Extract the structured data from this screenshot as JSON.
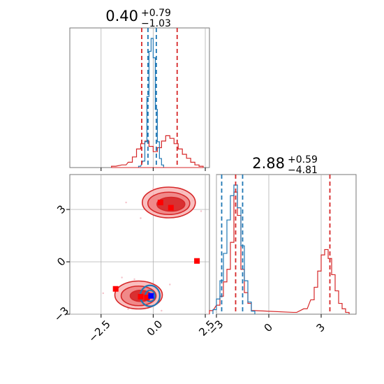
{
  "chart_data": {
    "type": "corner",
    "params": [
      "p0",
      "p1"
    ],
    "titles": [
      {
        "value": "0.40",
        "plus": "+0.79",
        "minus": "−1.03"
      },
      {
        "value": "2.88",
        "plus": "+0.59",
        "minus": "−4.81"
      }
    ],
    "ranges": {
      "x": [
        -4.0,
        2.7
      ],
      "y": [
        -3.0,
        5.0
      ]
    },
    "xticks": [
      {
        "v": -2.5,
        "label": "−2.5"
      },
      {
        "v": 0.0,
        "label": "0.0"
      },
      {
        "v": 2.5,
        "label": "2.5"
      }
    ],
    "yticks": [
      {
        "v": -3,
        "label": "−3"
      },
      {
        "v": 0,
        "label": "0"
      },
      {
        "v": 3,
        "label": "3"
      }
    ],
    "colors": {
      "red": "#d62728",
      "blue": "#1f77b4",
      "red_fill": "#f08080",
      "marker_red": "#ff0000",
      "marker_blue": "#0000ff",
      "grid": "#b0b0b0"
    },
    "hist_x": {
      "red_lines": [
        -0.55,
        1.15
      ],
      "blue_lines": [
        -0.25,
        0.15
      ],
      "red_bins": [
        [
          -2.0,
          0.01
        ],
        [
          -1.5,
          0.02
        ],
        [
          -1.2,
          0.04
        ],
        [
          -1.0,
          0.08
        ],
        [
          -0.8,
          0.14
        ],
        [
          -0.6,
          0.18
        ],
        [
          -0.4,
          0.2
        ],
        [
          -0.2,
          0.16
        ],
        [
          0.0,
          0.12
        ],
        [
          0.2,
          0.15
        ],
        [
          0.4,
          0.2
        ],
        [
          0.6,
          0.24
        ],
        [
          0.8,
          0.22
        ],
        [
          1.0,
          0.18
        ],
        [
          1.2,
          0.14
        ],
        [
          1.4,
          0.1
        ],
        [
          1.6,
          0.07
        ],
        [
          1.8,
          0.04
        ],
        [
          2.0,
          0.02
        ],
        [
          2.2,
          0.01
        ]
      ],
      "blue_bins": [
        [
          -0.7,
          0.01
        ],
        [
          -0.5,
          0.05
        ],
        [
          -0.4,
          0.2
        ],
        [
          -0.3,
          0.55
        ],
        [
          -0.2,
          0.9
        ],
        [
          -0.1,
          1.0
        ],
        [
          0.0,
          0.85
        ],
        [
          0.1,
          0.45
        ],
        [
          0.2,
          0.2
        ],
        [
          0.3,
          0.07
        ],
        [
          0.4,
          0.02
        ]
      ]
    },
    "hist_y": {
      "red_lines": [
        -1.9,
        3.5
      ],
      "blue_lines": [
        -2.7,
        -1.5
      ],
      "red_bins": [
        [
          -3.4,
          0.02
        ],
        [
          -3.0,
          0.05
        ],
        [
          -2.8,
          0.1
        ],
        [
          -2.6,
          0.18
        ],
        [
          -2.4,
          0.25
        ],
        [
          -2.2,
          0.4
        ],
        [
          -2.0,
          0.68
        ],
        [
          -1.8,
          0.55
        ],
        [
          -1.6,
          0.25
        ],
        [
          -1.4,
          0.12
        ],
        [
          -1.2,
          0.06
        ],
        [
          -1.0,
          0.02
        ],
        [
          1.4,
          0.01
        ],
        [
          2.0,
          0.03
        ],
        [
          2.4,
          0.08
        ],
        [
          2.6,
          0.15
        ],
        [
          2.8,
          0.24
        ],
        [
          3.0,
          0.33
        ],
        [
          3.2,
          0.36
        ],
        [
          3.4,
          0.31
        ],
        [
          3.6,
          0.22
        ],
        [
          3.8,
          0.13
        ],
        [
          4.0,
          0.06
        ],
        [
          4.2,
          0.03
        ],
        [
          4.4,
          0.01
        ]
      ],
      "blue_bins": [
        [
          -3.2,
          0.03
        ],
        [
          -3.0,
          0.1
        ],
        [
          -2.8,
          0.22
        ],
        [
          -2.6,
          0.4
        ],
        [
          -2.4,
          0.62
        ],
        [
          -2.2,
          0.78
        ],
        [
          -2.0,
          0.85
        ],
        [
          -1.8,
          0.7
        ],
        [
          -1.6,
          0.45
        ],
        [
          -1.4,
          0.22
        ],
        [
          -1.2,
          0.08
        ],
        [
          -1.0,
          0.02
        ]
      ]
    },
    "markers_red": [
      [
        0.35,
        3.4
      ],
      [
        0.85,
        3.1
      ],
      [
        2.1,
        0.05
      ],
      [
        -1.8,
        -1.55
      ],
      [
        -0.6,
        -2.0
      ],
      [
        -0.3,
        -2.05
      ]
    ],
    "markers_blue": [
      [
        -0.1,
        -1.95
      ]
    ]
  }
}
